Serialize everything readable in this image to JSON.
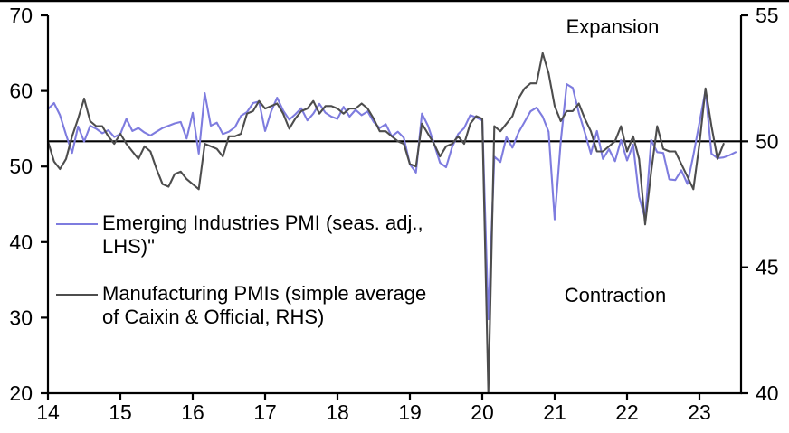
{
  "annotations": {
    "expansion": "Expansion",
    "contraction": "Contraction"
  },
  "legend": [
    {
      "label": "Emerging Industries PMI (seas. adj., LHS)\"",
      "color": "#7e7cdf"
    },
    {
      "label": "Manufacturing PMIs (simple average of Caixin & Official, RHS)",
      "color": "#4d4d4d"
    }
  ],
  "chart_data": {
    "type": "line",
    "title": "",
    "xlabel": "",
    "ylabel_left": "",
    "ylabel_right": "",
    "grid": false,
    "frame": {
      "top_border": true
    },
    "x_axis": {
      "tick_labels": [
        "14",
        "15",
        "16",
        "17",
        "18",
        "19",
        "20",
        "21",
        "22",
        "23"
      ],
      "tick_years": [
        2014,
        2015,
        2016,
        2017,
        2018,
        2019,
        2020,
        2021,
        2022,
        2023
      ],
      "min_year": 2014,
      "max_year": 2023.58
    },
    "left_axis": {
      "min": 20,
      "max": 70,
      "ticks": [
        20,
        30,
        40,
        50,
        60,
        70
      ]
    },
    "right_axis": {
      "min": 40,
      "max": 55,
      "ticks": [
        40,
        45,
        50,
        55
      ]
    },
    "reference_line_rhs": 50,
    "series": [
      {
        "name": "Emerging Industries PMI (seas. adj., LHS)\"",
        "axis": "left",
        "color": "#7e7cdf",
        "start_year": 2014,
        "start_month": 1,
        "values": [
          57.6,
          58.4,
          56.8,
          54.2,
          51.8,
          55.3,
          53.3,
          55.4,
          55.0,
          54.4,
          54.8,
          53.9,
          54.3,
          56.3,
          54.7,
          55.1,
          54.5,
          54.1,
          54.6,
          55.1,
          55.4,
          55.7,
          55.9,
          53.7,
          57.1,
          51.7,
          59.7,
          55.4,
          55.8,
          54.3,
          54.6,
          55.2,
          56.7,
          57.2,
          58.4,
          58.6,
          54.7,
          57.3,
          59.1,
          57.4,
          56.2,
          56.9,
          57.7,
          56.1,
          57.0,
          58.3,
          57.1,
          56.6,
          56.3,
          57.9,
          56.6,
          57.5,
          56.8,
          57.3,
          55.9,
          55.1,
          55.6,
          54.0,
          54.6,
          53.8,
          50.3,
          49.2,
          57.0,
          55.4,
          53.0,
          50.5,
          49.9,
          52.6,
          54.3,
          55.1,
          56.8,
          56.5,
          56.1,
          29.8,
          51.3,
          50.6,
          53.9,
          52.5,
          54.5,
          55.9,
          57.3,
          57.8,
          56.6,
          54.6,
          43.0,
          53.3,
          60.9,
          60.4,
          57.1,
          54.5,
          51.7,
          54.7,
          51.0,
          52.3,
          50.7,
          53.5,
          50.8,
          52.9,
          46.0,
          43.1,
          53.5,
          51.9,
          51.8,
          48.3,
          48.2,
          49.5,
          47.7,
          51.5,
          55.8,
          60.1,
          51.7,
          51.1,
          51.2,
          51.5,
          51.9
        ]
      },
      {
        "name": "Manufacturing PMIs (simple average of Caixin & Official, RHS)",
        "axis": "right",
        "color": "#4d4d4d",
        "start_year": 2014,
        "start_month": 1,
        "values": [
          50.0,
          49.2,
          48.9,
          49.3,
          50.2,
          50.9,
          51.7,
          50.8,
          50.6,
          50.6,
          50.2,
          49.9,
          50.3,
          49.9,
          49.6,
          49.3,
          49.8,
          49.6,
          48.9,
          48.3,
          48.2,
          48.7,
          48.8,
          48.5,
          48.3,
          48.1,
          49.9,
          49.8,
          49.7,
          49.4,
          50.2,
          50.2,
          50.3,
          51.1,
          51.2,
          51.6,
          51.3,
          51.4,
          51.5,
          51.1,
          50.5,
          50.9,
          51.2,
          51.3,
          51.6,
          51.1,
          51.4,
          51.4,
          51.3,
          51.1,
          51.3,
          51.3,
          51.5,
          51.3,
          50.9,
          50.4,
          50.4,
          50.2,
          50.0,
          49.9,
          49.1,
          49.0,
          50.7,
          50.3,
          49.9,
          49.4,
          49.8,
          49.9,
          50.2,
          49.9,
          50.7,
          51.0,
          50.9,
          40.0,
          50.6,
          50.4,
          50.7,
          51.0,
          51.7,
          52.1,
          52.3,
          52.3,
          53.5,
          52.7,
          51.4,
          50.8,
          51.2,
          51.2,
          51.5,
          50.9,
          50.4,
          49.6,
          49.6,
          49.8,
          50.0,
          50.6,
          49.6,
          50.2,
          49.3,
          46.7,
          48.8,
          50.6,
          49.7,
          49.6,
          49.6,
          49.1,
          48.6,
          48.1,
          49.9,
          52.1,
          50.6,
          49.3,
          49.9
        ]
      }
    ]
  }
}
